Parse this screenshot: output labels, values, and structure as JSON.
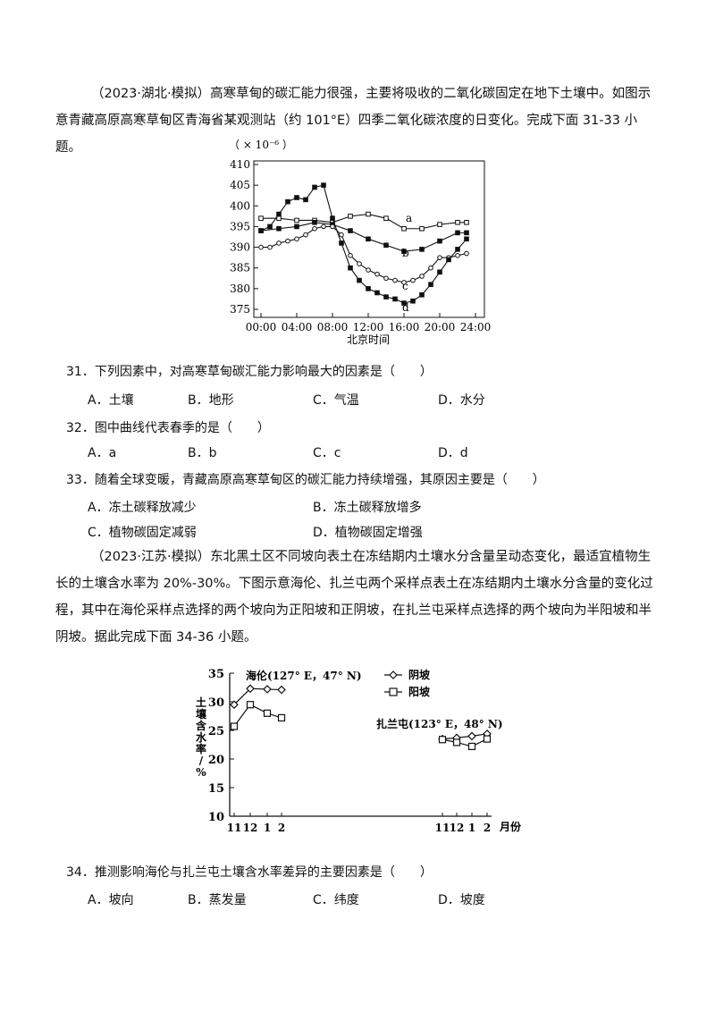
{
  "passage1": {
    "source": "（2023·湖北·模拟）",
    "text": "高寒草甸的碳汇能力很强，主要将吸收的二氧化碳固定在地下土壤中。如图示意青藏高原高寒草甸区青海省某观测站（约 101°E）四季二氧化碳浓度的日变化。完成下面 31-33 小题。"
  },
  "chart1": {
    "unit": "（ × 10⁻⁶ ）",
    "xlabel": "北京时间",
    "y_ticks": [
      "410",
      "405",
      "400",
      "395",
      "390",
      "385",
      "380",
      "375"
    ],
    "x_ticks": [
      "00:00",
      "04:00",
      "08:00",
      "12:00",
      "16:00",
      "20:00",
      "24:00"
    ]
  },
  "questions": [
    {
      "stem": "31．下列因素中，对高寒草甸碳汇能力影响最大的因素是（　　）",
      "options": [
        "A．土壤",
        "B．地形",
        "C．气温",
        "D．水分"
      ]
    },
    {
      "stem": "32．图中曲线代表春季的是（　　）",
      "options": [
        "A．a",
        "B．b",
        "C．c",
        "D．d"
      ]
    },
    {
      "stem": "33．随着全球变暖，青藏高原高寒草甸区的碳汇能力持续增强，其原因主要是（　　）",
      "options": [
        "A．冻土碳释放减少",
        "B．冻土碳释放增多",
        "C．植物碳固定减弱",
        "D．植物碳固定增强"
      ]
    }
  ],
  "passage2": {
    "source": "（2023·江苏·模拟）",
    "text": "东北黑土区不同坡向表土在冻结期内土壤水分含量呈动态变化，最适宜植物生长的土壤含水率为 20%-30%。下图示意海伦、扎兰屯两个采样点表土在冻结期内土壤水分含量的变化过程，其中在海伦采样点选择的两个坡向为正阳坡和正阴坡，在扎兰屯采样点选择的两个坡向为半阳坡和半阴坡。据此完成下面 34-36 小题。"
  },
  "chart2": {
    "ylabel": "土壤含水率/%",
    "xunit": "月份",
    "y_ticks": [
      "35",
      "30",
      "25",
      "20",
      "15",
      "10"
    ],
    "x_ticks_left": [
      "11",
      "12",
      "1",
      "2"
    ],
    "x_ticks_right": [
      "11",
      "12",
      "1",
      "2"
    ],
    "label_hailun": "海伦(127° E，47° N)",
    "label_zhalantun": "扎兰屯(123° E，48° N)",
    "legend_yinpo": "阴坡",
    "legend_yangpo": "阳坡"
  },
  "question34": {
    "stem": "34．推测影响海伦与扎兰屯土壤含水率差异的主要因素是（　　）",
    "options": [
      "A．坡向",
      "B．蒸发量",
      "C．纬度",
      "D．坡度"
    ]
  },
  "chart_data": [
    {
      "type": "line",
      "ylabel": "",
      "xlabel": "北京时间",
      "ylim": [
        375,
        410
      ],
      "xlim": [
        0,
        24
      ],
      "series": [
        {
          "name": "a",
          "x": [
            0,
            2,
            4,
            6,
            8,
            10,
            12,
            14,
            16,
            18,
            20,
            22,
            23
          ],
          "values": [
            397,
            397,
            396.5,
            396.5,
            396,
            397.5,
            398,
            397,
            394.5,
            394.5,
            395.5,
            396,
            396
          ]
        },
        {
          "name": "b",
          "x": [
            0,
            2,
            4,
            6,
            8,
            10,
            12,
            14,
            16,
            18,
            20,
            22,
            23
          ],
          "values": [
            394,
            394.5,
            395,
            396,
            395.5,
            394,
            392,
            390.5,
            389,
            389.5,
            391.5,
            393.5,
            393.5
          ]
        },
        {
          "name": "c",
          "x": [
            0,
            1,
            2,
            3,
            4,
            5,
            6,
            7,
            8,
            9,
            10,
            11,
            12,
            13,
            14,
            15,
            16,
            17,
            18,
            19,
            20,
            21,
            22,
            23
          ],
          "values": [
            390,
            390,
            391,
            391.5,
            392,
            393,
            394.5,
            395,
            395,
            393,
            388,
            386,
            384.5,
            383.5,
            382.5,
            382,
            381.5,
            382,
            383,
            385,
            387.5,
            387.5,
            388,
            388.5
          ]
        },
        {
          "name": "d",
          "x": [
            0,
            1,
            2,
            3,
            4,
            5,
            6,
            7,
            8,
            9,
            10,
            11,
            12,
            13,
            14,
            15,
            16,
            17,
            18,
            19,
            20,
            21,
            22,
            23
          ],
          "values": [
            394,
            395,
            398,
            401,
            402,
            401.5,
            404.5,
            405,
            397,
            391,
            385,
            382,
            380,
            379,
            378,
            377.5,
            376.5,
            377,
            378.5,
            381,
            384,
            387,
            389.5,
            392
          ]
        }
      ]
    },
    {
      "type": "line",
      "ylabel": "土壤含水率/%",
      "xlabel": "月份",
      "ylim": [
        10,
        35
      ],
      "series": [
        {
          "name": "海伦 阴坡",
          "x": [
            "11",
            "12",
            "1",
            "2"
          ],
          "values": [
            29.5,
            32.3,
            32.2,
            32.1
          ]
        },
        {
          "name": "海伦 阳坡",
          "x": [
            "11",
            "12",
            "1",
            "2"
          ],
          "values": [
            25.7,
            29.5,
            28.0,
            27.2
          ]
        },
        {
          "name": "扎兰屯 阴坡",
          "x": [
            "11",
            "12",
            "1",
            "2"
          ],
          "values": [
            23.5,
            23.7,
            24.0,
            24.4
          ]
        },
        {
          "name": "扎兰屯 阳坡",
          "x": [
            "11",
            "12",
            "1",
            "2"
          ],
          "values": [
            23.4,
            22.9,
            22.2,
            23.5
          ]
        }
      ]
    }
  ]
}
